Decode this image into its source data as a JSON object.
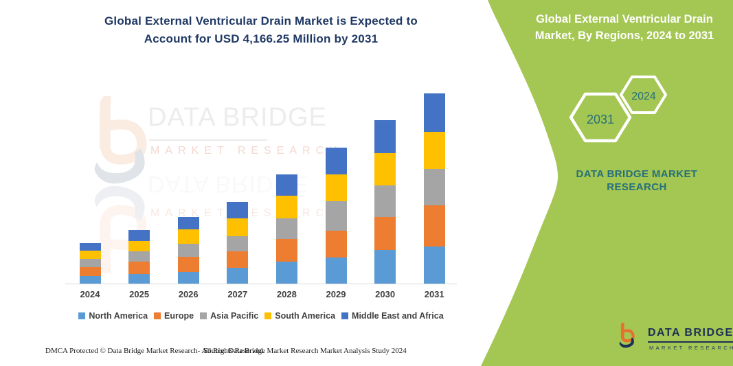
{
  "main_title": {
    "line1": "Global External Ventricular Drain Market is Expected to",
    "line2": "Account for USD 4,166.25 Million by 2031"
  },
  "right_panel": {
    "title_line1": "Global External Ventricular Drain",
    "title_line2": "Market, By Regions, 2024 to 2031",
    "hexagon_back_year": "2031",
    "hexagon_front_year": "2024",
    "brand_line1": "DATA BRIDGE MARKET",
    "brand_line2": "RESEARCH",
    "background_green": "#a4c653",
    "teal": "#26707b"
  },
  "watermark": {
    "title": "DATA BRIDGE",
    "subtitle": "MARKET RESEARCH",
    "ghost_title": "DATA BRIDGE",
    "ghost_subtitle": "MARKET RESEARCH"
  },
  "logo": {
    "name": "DATA BRIDGE",
    "subtitle": "MARKET RESEARCH"
  },
  "footer": {
    "left": "DMCA Protected © Data Bridge Market Research-  All Rights Reserved.",
    "source": "Source: Data Bridge Market Research  Market Analysis Study 2024"
  },
  "chart_data": {
    "type": "bar",
    "stacked": true,
    "title": "Global External Ventricular Drain Market is Expected to Account for USD 4,166.25 Million by 2031",
    "units": "USD Million",
    "categories": [
      "2024",
      "2025",
      "2026",
      "2027",
      "2028",
      "2029",
      "2030",
      "2031"
    ],
    "series": [
      {
        "name": "North America",
        "color": "#5b9bd5",
        "values": [
          170,
          211,
          256,
          351,
          478,
          578,
          734,
          814
        ]
      },
      {
        "name": "Europe",
        "color": "#ed7d31",
        "values": [
          192,
          267,
          332,
          362,
          502,
          578,
          719,
          905
        ]
      },
      {
        "name": "Asia Pacific",
        "color": "#a5a5a5",
        "values": [
          185,
          222,
          291,
          327,
          452,
          654,
          698,
          789
        ]
      },
      {
        "name": "South America",
        "color": "#ffc000",
        "values": [
          176,
          226,
          312,
          392,
          487,
          582,
          704,
          818.25
        ]
      },
      {
        "name": "Middle East and Africa",
        "color": "#4472c4",
        "values": [
          166,
          252,
          276,
          362,
          472,
          588,
          719,
          840
        ]
      }
    ],
    "totals": [
      889,
      1178,
      1467,
      1794,
      2391,
      2980,
      3574,
      4166.25
    ],
    "labeled_total_2031": 4166.25,
    "ylim": [
      0,
      4400
    ],
    "grid": false,
    "y_axis_visible": false,
    "legend_position": "bottom"
  }
}
